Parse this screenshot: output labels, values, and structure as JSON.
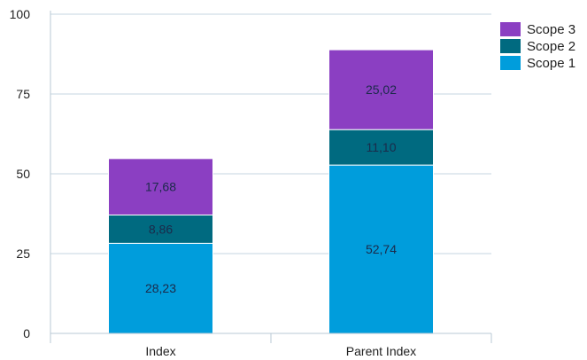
{
  "chart_data": {
    "type": "bar",
    "stacked": true,
    "categories": [
      "Index",
      "Parent Index"
    ],
    "series": [
      {
        "name": "Scope 1",
        "color": "#009ddc",
        "values": [
          28.23,
          52.74
        ],
        "labels": [
          "28,23",
          "52,74"
        ]
      },
      {
        "name": "Scope 2",
        "color": "#006a80",
        "values": [
          8.86,
          11.1
        ],
        "labels": [
          "8,86",
          "11,10"
        ]
      },
      {
        "name": "Scope 3",
        "color": "#8b3fc2",
        "values": [
          17.68,
          25.02
        ],
        "labels": [
          "17,68",
          "25,02"
        ]
      }
    ],
    "ylim": [
      0,
      100
    ],
    "yticks": [
      0,
      25,
      50,
      75,
      100
    ],
    "ytick_labels": [
      "0",
      "25",
      "50",
      "75",
      "100"
    ],
    "title": "",
    "xlabel": "",
    "ylabel": "",
    "grid": true,
    "legend_position": "top-right",
    "legend_order": [
      "Scope 3",
      "Scope 2",
      "Scope 1"
    ],
    "colors": {
      "grid": "#c5d6e0",
      "axis": "#b9c9d4",
      "text": "#222222"
    }
  }
}
